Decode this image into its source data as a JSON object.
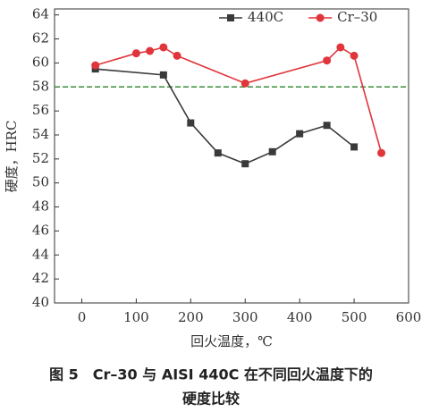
{
  "chart_data": {
    "type": "line",
    "x_label": "回火温度，℃",
    "y_label": "硬度，HRC",
    "xlim": [
      -50,
      600
    ],
    "xticks": [
      0,
      100,
      200,
      300,
      400,
      500,
      600
    ],
    "ylim": [
      40,
      64.5
    ],
    "yticks": [
      40,
      42,
      44,
      46,
      48,
      50,
      52,
      54,
      56,
      58,
      60,
      62,
      64
    ],
    "legend": "upper right",
    "reference_line": {
      "value": 58,
      "color": "#3c8c3c"
    },
    "series": [
      {
        "name": "440C",
        "color": "#3a3a3a",
        "marker": "square",
        "x": [
          25,
          150,
          200,
          250,
          300,
          350,
          400,
          450,
          500
        ],
        "values": [
          59.5,
          59,
          55,
          52.5,
          51.6,
          52.6,
          54.1,
          54.8,
          53
        ]
      },
      {
        "name": "Cr–30",
        "color": "#e0353b",
        "marker": "circle",
        "x": [
          25,
          100,
          125,
          150,
          175,
          300,
          450,
          475,
          500,
          550
        ],
        "values": [
          59.8,
          60.8,
          61,
          61.3,
          60.6,
          58.3,
          60.2,
          61.3,
          60.6,
          52.5
        ]
      }
    ]
  },
  "caption": [
    "图 5　Cr–30 与 AISI 440C 在不同回火温度下的",
    "硬度比较"
  ]
}
